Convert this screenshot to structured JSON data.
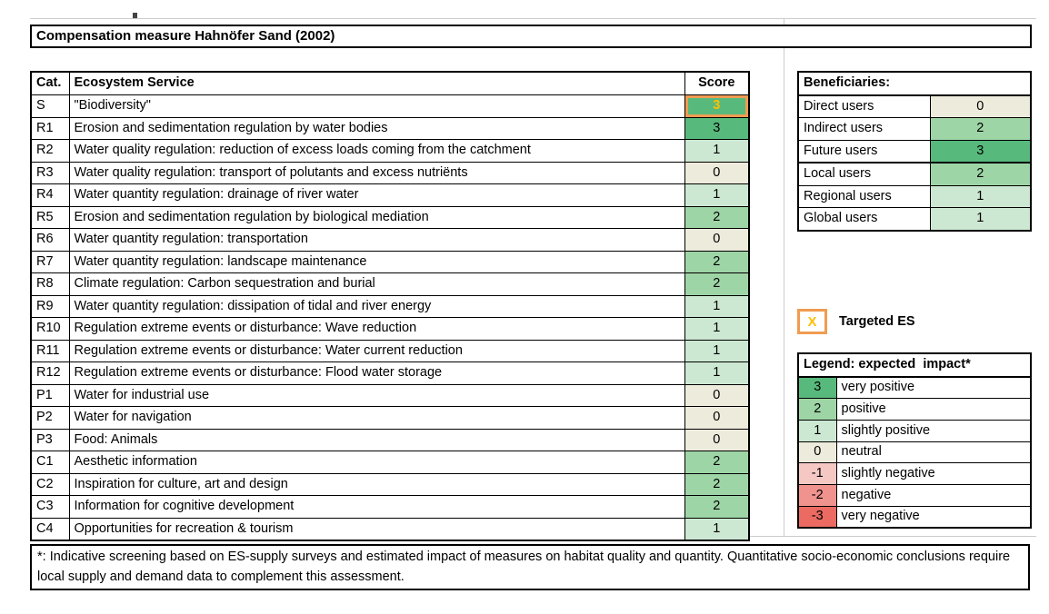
{
  "title": "Compensation measure Hahnöfer Sand (2002)",
  "es_table": {
    "headers": {
      "cat": "Cat.",
      "service": "Ecosystem Service",
      "score": "Score"
    },
    "rows": [
      {
        "cat": "S",
        "service": "\"Biodiversity\"",
        "score": "3",
        "targeted": true
      },
      {
        "cat": "R1",
        "service": "Erosion and sedimentation regulation by water bodies",
        "score": "3",
        "targeted": false
      },
      {
        "cat": "R2",
        "service": "Water quality regulation: reduction of excess loads coming from the catchment",
        "score": "1",
        "targeted": false
      },
      {
        "cat": "R3",
        "service": "Water quality regulation: transport of polutants and excess nutriënts",
        "score": "0",
        "targeted": false
      },
      {
        "cat": "R4",
        "service": "Water quantity regulation: drainage of river water",
        "score": "1",
        "targeted": false
      },
      {
        "cat": "R5",
        "service": "Erosion and sedimentation regulation by biological mediation",
        "score": "2",
        "targeted": false
      },
      {
        "cat": "R6",
        "service": "Water quantity regulation: transportation",
        "score": "0",
        "targeted": false
      },
      {
        "cat": "R7",
        "service": "Water quantity regulation: landscape maintenance",
        "score": "2",
        "targeted": false
      },
      {
        "cat": "R8",
        "service": "Climate regulation: Carbon sequestration and burial",
        "score": "2",
        "targeted": false
      },
      {
        "cat": "R9",
        "service": "Water quantity regulation: dissipation of tidal and river energy",
        "score": "1",
        "targeted": false
      },
      {
        "cat": "R10",
        "service": "Regulation extreme events or disturbance: Wave reduction",
        "score": "1",
        "targeted": false
      },
      {
        "cat": "R11",
        "service": "Regulation extreme events or disturbance: Water current reduction",
        "score": "1",
        "targeted": false
      },
      {
        "cat": "R12",
        "service": "Regulation extreme events or disturbance: Flood water storage",
        "score": "1",
        "targeted": false
      },
      {
        "cat": "P1",
        "service": "Water for industrial use",
        "score": "0",
        "targeted": false
      },
      {
        "cat": "P2",
        "service": "Water for navigation",
        "score": "0",
        "targeted": false
      },
      {
        "cat": "P3",
        "service": "Food: Animals",
        "score": "0",
        "targeted": false
      },
      {
        "cat": "C1",
        "service": "Aesthetic information",
        "score": "2",
        "targeted": false
      },
      {
        "cat": "C2",
        "service": "Inspiration for culture, art and design",
        "score": "2",
        "targeted": false
      },
      {
        "cat": "C3",
        "service": "Information for cognitive development",
        "score": "2",
        "targeted": false
      },
      {
        "cat": "C4",
        "service": "Opportunities for recreation & tourism",
        "score": "1",
        "targeted": false
      }
    ]
  },
  "beneficiaries": {
    "title": "Beneficiaries:",
    "rows": [
      {
        "label": "Direct users",
        "value": "0"
      },
      {
        "label": "Indirect users",
        "value": "2"
      },
      {
        "label": "Future users",
        "value": "3"
      },
      {
        "label": "Local users",
        "value": "2"
      },
      {
        "label": "Regional users",
        "value": "1"
      },
      {
        "label": "Global users",
        "value": "1"
      }
    ]
  },
  "targeted_marker": {
    "symbol": "X",
    "label": "Targeted ES"
  },
  "legend": {
    "title": "Legend: expected  impact*",
    "rows": [
      {
        "value": "3",
        "label": "very positive"
      },
      {
        "value": "2",
        "label": "positive"
      },
      {
        "value": "1",
        "label": "slightly positive"
      },
      {
        "value": "0",
        "label": "neutral"
      },
      {
        "value": "-1",
        "label": "slightly negative"
      },
      {
        "value": "-2",
        "label": "negative"
      },
      {
        "value": "-3",
        "label": "very negative"
      }
    ]
  },
  "footnote": "*: Indicative screening based on ES-supply surveys and estimated impact of measures on habitat quality and quantity. Quantitative socio-economic conclusions require local supply and demand data to complement this assessment.",
  "impact_colors": {
    "3": "#57BA7C",
    "2": "#9ED5A6",
    "1": "#CDE8D2",
    "0": "#EDEBDC",
    "-1": "#F5C8C4",
    "-2": "#F0938E",
    "-3": "#EB6A62"
  },
  "accent": {
    "highlight_border": "#F09C51",
    "highlight_text": "#FFC000"
  }
}
